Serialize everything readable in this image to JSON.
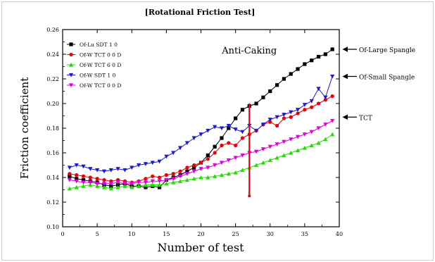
{
  "chart_data": {
    "type": "line",
    "title": "[Rotational Friction Test]",
    "xlabel": "Number of test",
    "ylabel": "Friction coefficient",
    "xlim": [
      0,
      40
    ],
    "ylim": [
      0.1,
      0.26
    ],
    "x_ticks": [
      "0",
      "5",
      "10",
      "15",
      "20",
      "25",
      "30",
      "35",
      "40"
    ],
    "y_ticks": [
      "0.10",
      "0.12",
      "0.14",
      "0.16",
      "0.18",
      "0.20",
      "0.22",
      "0.24",
      "0.26"
    ],
    "grid": false,
    "legend_position": "top-left",
    "x": [
      1,
      2,
      3,
      4,
      5,
      6,
      7,
      8,
      9,
      10,
      11,
      12,
      13,
      14,
      15,
      16,
      17,
      18,
      19,
      20,
      21,
      22,
      23,
      24,
      25,
      26,
      27,
      28,
      29,
      30,
      31,
      32,
      33,
      34,
      35,
      36,
      37,
      38,
      39
    ],
    "series": [
      {
        "name": "Of-Lu SDT 1 0",
        "color": "#000000",
        "marker": "square",
        "values": [
          0.141,
          0.139,
          0.138,
          0.137,
          0.136,
          0.134,
          0.133,
          0.134,
          0.135,
          0.133,
          0.133,
          0.132,
          0.133,
          0.132,
          0.138,
          0.14,
          0.142,
          0.145,
          0.148,
          0.152,
          0.158,
          0.165,
          0.172,
          0.18,
          0.188,
          0.195,
          0.198,
          0.2,
          0.205,
          0.21,
          0.215,
          0.22,
          0.224,
          0.228,
          0.232,
          0.235,
          0.238,
          0.24,
          0.244
        ]
      },
      {
        "name": "Of-W TCT 0 0 D",
        "color": "#e8000b",
        "marker": "circle",
        "values": [
          0.143,
          0.142,
          0.141,
          0.14,
          0.139,
          0.138,
          0.137,
          0.138,
          0.137,
          0.136,
          0.137,
          0.139,
          0.141,
          0.14,
          0.142,
          0.143,
          0.145,
          0.148,
          0.15,
          0.152,
          0.155,
          0.16,
          0.166,
          0.168,
          0.166,
          0.172,
          0.175,
          0.178,
          0.183,
          0.185,
          0.182,
          0.188,
          0.189,
          0.192,
          0.195,
          0.197,
          0.2,
          0.203,
          0.206
        ]
      },
      {
        "name": "Of-W TCT 6 0 D",
        "color": "#22dd00",
        "marker": "triangle-up",
        "values": [
          0.131,
          0.132,
          0.133,
          0.134,
          0.133,
          0.132,
          0.131,
          0.132,
          0.133,
          0.132,
          0.133,
          0.134,
          0.134,
          0.134,
          0.135,
          0.136,
          0.137,
          0.138,
          0.139,
          0.14,
          0.14,
          0.141,
          0.142,
          0.143,
          0.144,
          0.146,
          0.148,
          0.15,
          0.152,
          0.154,
          0.156,
          0.158,
          0.16,
          0.162,
          0.164,
          0.166,
          0.168,
          0.171,
          0.175
        ]
      },
      {
        "name": "Of-W SDT 1 0",
        "color": "#1a1ad0",
        "marker": "triangle-down",
        "values": [
          0.148,
          0.15,
          0.149,
          0.147,
          0.146,
          0.145,
          0.146,
          0.147,
          0.146,
          0.148,
          0.15,
          0.151,
          0.152,
          0.153,
          0.157,
          0.16,
          0.164,
          0.168,
          0.172,
          0.175,
          0.178,
          0.181,
          0.18,
          0.182,
          0.179,
          0.177,
          0.182,
          0.178,
          0.183,
          0.187,
          0.189,
          0.191,
          0.193,
          0.195,
          0.199,
          0.202,
          0.212,
          0.205,
          0.222
        ]
      },
      {
        "name": "Of-W TCT 0 0 D",
        "color": "#e000e0",
        "marker": "triangle-down",
        "values": [
          0.138,
          0.137,
          0.136,
          0.136,
          0.135,
          0.135,
          0.135,
          0.136,
          0.135,
          0.135,
          0.136,
          0.136,
          0.137,
          0.137,
          0.138,
          0.139,
          0.141,
          0.143,
          0.145,
          0.147,
          0.148,
          0.15,
          0.152,
          0.154,
          0.156,
          0.158,
          0.16,
          0.161,
          0.163,
          0.165,
          0.167,
          0.169,
          0.171,
          0.173,
          0.175,
          0.177,
          0.18,
          0.183,
          0.186
        ]
      }
    ],
    "annotations": {
      "anti_caking_label": "Anti-Caking",
      "anti_caking_x": 27,
      "anti_caking_range": [
        0.125,
        0.2
      ],
      "anti_caking_color": "#e8000b",
      "right_labels": [
        {
          "text": "Of-Large Spangle",
          "y": 0.244
        },
        {
          "text": "Of-Small Spangle",
          "y": 0.222
        },
        {
          "text": "TCT",
          "y": 0.189
        }
      ]
    }
  }
}
